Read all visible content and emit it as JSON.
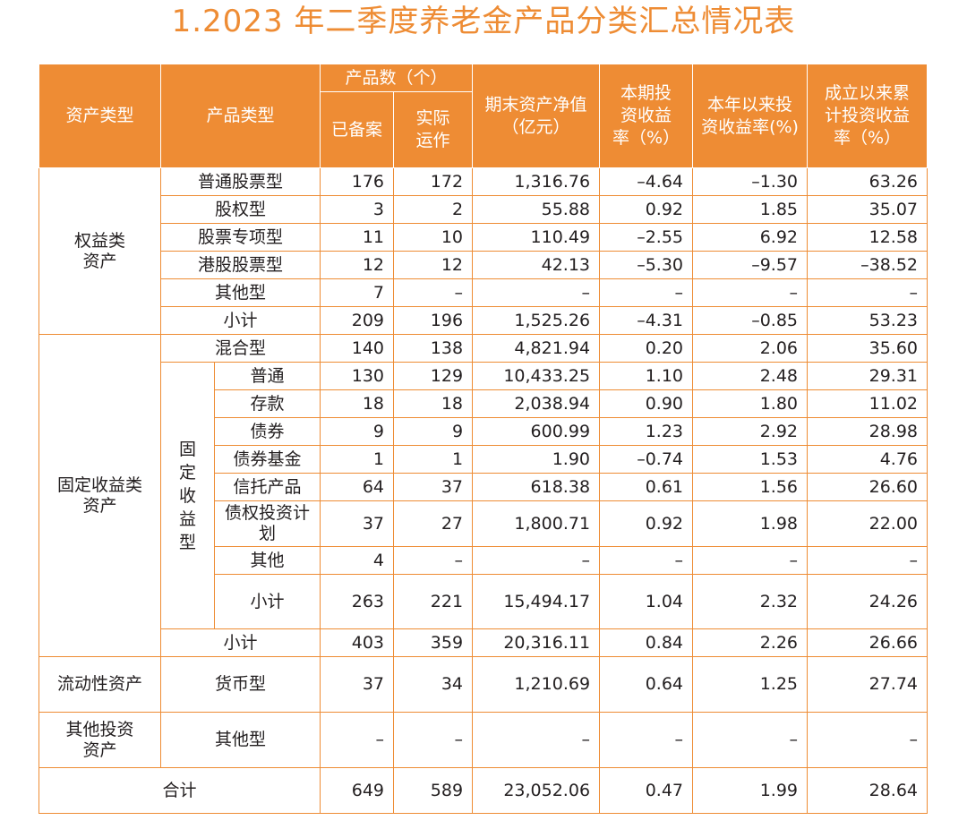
{
  "title": "1.2023 年二季度养老金产品分类汇总情况表",
  "header": {
    "asset_type": "资产类型",
    "product_type": "产品类型",
    "product_count": "产品数（个）",
    "filed": "已备案",
    "operating": "实际运作",
    "nav": "期末资产净值（亿元）",
    "period_return": "本期投资收益率（%）",
    "ytd_return": "本年以来投资收益率(%)",
    "cumulative_return": "成立以来累计投资收益率（%）"
  },
  "groups": {
    "equity": "权益类资产",
    "fixed_income": "固定收益类资产",
    "fixed_sub": "固定收益型",
    "liquidity": "流动性资产",
    "other": "其他投资资产"
  },
  "rows": [
    {
      "name": "普通股票型",
      "filed": "176",
      "operating": "172",
      "nav": "1,316.76",
      "period": "–4.64",
      "ytd": "–1.30",
      "cumulative": "63.26"
    },
    {
      "name": "股权型",
      "filed": "3",
      "operating": "2",
      "nav": "55.88",
      "period": "0.92",
      "ytd": "1.85",
      "cumulative": "35.07"
    },
    {
      "name": "股票专项型",
      "filed": "11",
      "operating": "10",
      "nav": "110.49",
      "period": "–2.55",
      "ytd": "6.92",
      "cumulative": "12.58"
    },
    {
      "name": "港股股票型",
      "filed": "12",
      "operating": "12",
      "nav": "42.13",
      "period": "–5.30",
      "ytd": "–9.57",
      "cumulative": "–38.52"
    },
    {
      "name": "其他型",
      "filed": "7",
      "operating": "–",
      "nav": "–",
      "period": "–",
      "ytd": "–",
      "cumulative": "–"
    },
    {
      "name": "小计",
      "filed": "209",
      "operating": "196",
      "nav": "1,525.26",
      "period": "–4.31",
      "ytd": "–0.85",
      "cumulative": "53.23"
    },
    {
      "name": "混合型",
      "filed": "140",
      "operating": "138",
      "nav": "4,821.94",
      "period": "0.20",
      "ytd": "2.06",
      "cumulative": "35.60"
    },
    {
      "name": "普通",
      "filed": "130",
      "operating": "129",
      "nav": "10,433.25",
      "period": "1.10",
      "ytd": "2.48",
      "cumulative": "29.31"
    },
    {
      "name": "存款",
      "filed": "18",
      "operating": "18",
      "nav": "2,038.94",
      "period": "0.90",
      "ytd": "1.80",
      "cumulative": "11.02"
    },
    {
      "name": "债券",
      "filed": "9",
      "operating": "9",
      "nav": "600.99",
      "period": "1.23",
      "ytd": "2.92",
      "cumulative": "28.98"
    },
    {
      "name": "债券基金",
      "filed": "1",
      "operating": "1",
      "nav": "1.90",
      "period": "–0.74",
      "ytd": "1.53",
      "cumulative": "4.76"
    },
    {
      "name": "信托产品",
      "filed": "64",
      "operating": "37",
      "nav": "618.38",
      "period": "0.61",
      "ytd": "1.56",
      "cumulative": "26.60"
    },
    {
      "name": "债权投资计划",
      "filed": "37",
      "operating": "27",
      "nav": "1,800.71",
      "period": "0.92",
      "ytd": "1.98",
      "cumulative": "22.00"
    },
    {
      "name": "其他",
      "filed": "4",
      "operating": "–",
      "nav": "–",
      "period": "–",
      "ytd": "–",
      "cumulative": "–"
    },
    {
      "name": "小计",
      "filed": "263",
      "operating": "221",
      "nav": "15,494.17",
      "period": "1.04",
      "ytd": "2.32",
      "cumulative": "24.26"
    },
    {
      "name": "小计",
      "filed": "403",
      "operating": "359",
      "nav": "20,316.11",
      "period": "0.84",
      "ytd": "2.26",
      "cumulative": "26.66"
    },
    {
      "name": "货币型",
      "filed": "37",
      "operating": "34",
      "nav": "1,210.69",
      "period": "0.64",
      "ytd": "1.25",
      "cumulative": "27.74"
    },
    {
      "name": "其他型",
      "filed": "–",
      "operating": "–",
      "nav": "–",
      "period": "–",
      "ytd": "–",
      "cumulative": "–"
    },
    {
      "name": "合计",
      "filed": "649",
      "operating": "589",
      "nav": "23,052.06",
      "period": "0.47",
      "ytd": "1.99",
      "cumulative": "28.64"
    }
  ]
}
